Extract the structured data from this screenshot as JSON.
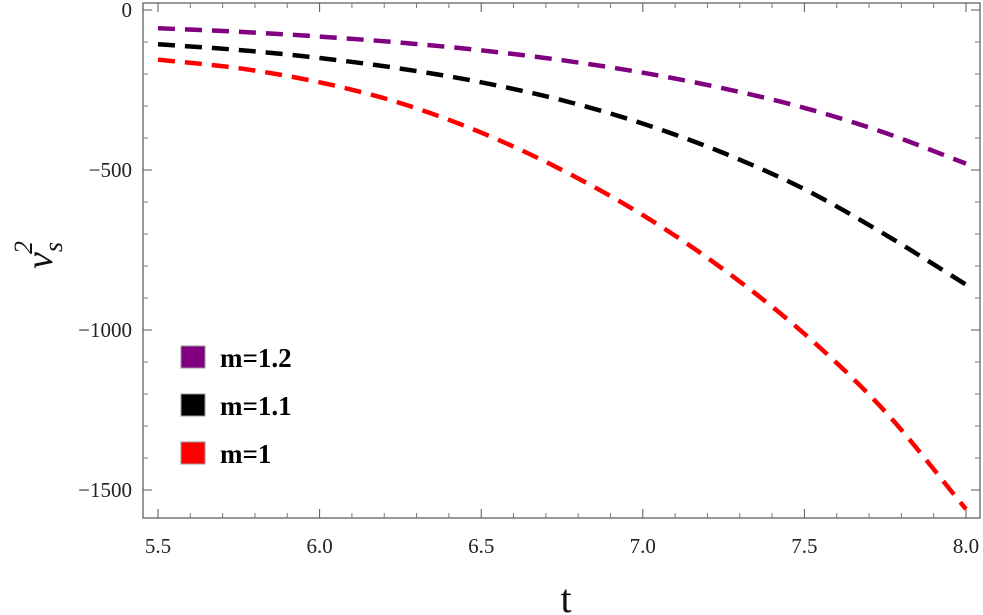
{
  "chart_data": {
    "type": "line",
    "title": "",
    "xlabel": "t",
    "ylabel_base": "v",
    "ylabel_sub": "s",
    "ylabel_sup": "2",
    "xlim": [
      5.5,
      8.0
    ],
    "ylim": [
      -1600,
      0
    ],
    "xticks": [
      5.5,
      6.0,
      6.5,
      7.0,
      7.5,
      8.0
    ],
    "xtick_labels": [
      "5.5",
      "6.0",
      "6.5",
      "7.0",
      "7.5",
      "8.0"
    ],
    "yticks": [
      0,
      -500,
      -1000,
      -1500
    ],
    "ytick_labels": [
      "0",
      "−500",
      "−1000",
      "−1500"
    ],
    "grid": false,
    "legend_position": "bottom-left",
    "series": [
      {
        "name": "m=1.2",
        "color": "#800080",
        "style": "dashed",
        "x": [
          5.5,
          5.75,
          6.0,
          6.25,
          6.5,
          6.75,
          7.0,
          7.25,
          7.5,
          7.75,
          8.0
        ],
        "y": [
          -57,
          -68,
          -83,
          -102,
          -126,
          -157,
          -196,
          -245,
          -306,
          -384,
          -480
        ]
      },
      {
        "name": "m=1.1",
        "color": "#000000",
        "style": "dashed",
        "x": [
          5.5,
          5.75,
          6.0,
          6.25,
          6.5,
          6.75,
          7.0,
          7.25,
          7.5,
          7.75,
          8.0
        ],
        "y": [
          -107,
          -125,
          -150,
          -183,
          -226,
          -282,
          -355,
          -447,
          -560,
          -702,
          -858
        ]
      },
      {
        "name": "m=1",
        "color": "#ff0000",
        "style": "dashed",
        "x": [
          5.5,
          5.75,
          6.0,
          6.25,
          6.5,
          6.75,
          7.0,
          7.25,
          7.5,
          7.75,
          8.0
        ],
        "y": [
          -155,
          -182,
          -226,
          -291,
          -383,
          -500,
          -641,
          -811,
          -1012,
          -1255,
          -1560
        ]
      }
    ]
  }
}
